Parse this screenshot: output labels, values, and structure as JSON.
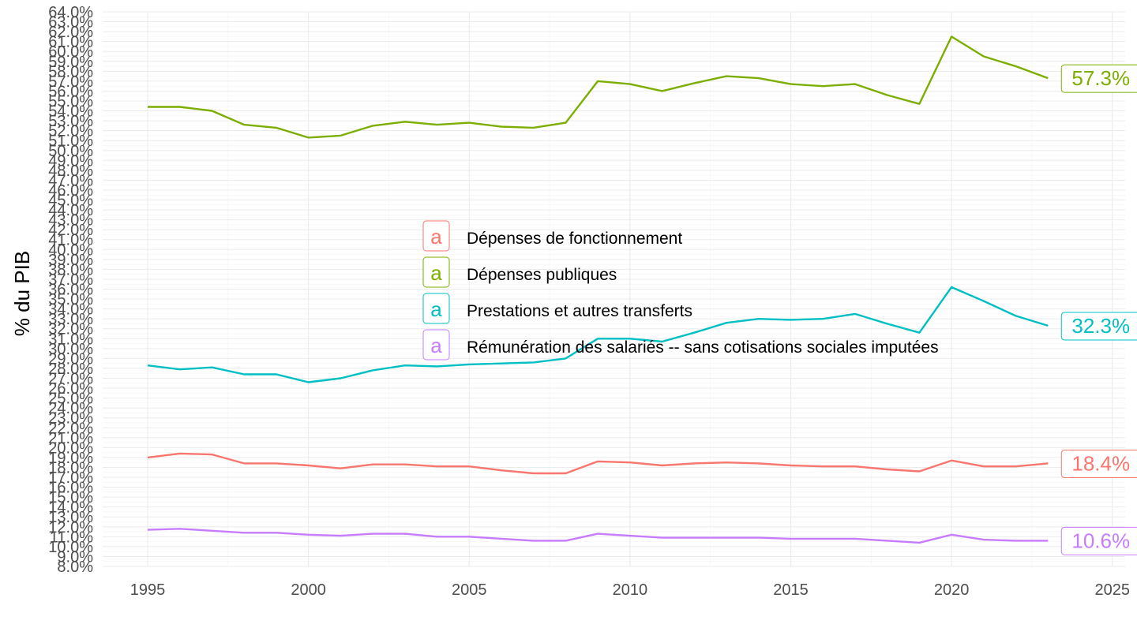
{
  "chart_data": {
    "type": "line",
    "ylabel": "% du PIB",
    "xlabel": "",
    "xlim": [
      1993.6,
      2025.4
    ],
    "ylim": [
      8.0,
      64.0
    ],
    "x_ticks": [
      "1995",
      "2000",
      "2005",
      "2010",
      "2015",
      "2020",
      "2025"
    ],
    "y_ticks": [
      "8.0%",
      "9.0%",
      "10.0%",
      "11.0%",
      "12.0%",
      "13.0%",
      "14.0%",
      "15.0%",
      "16.0%",
      "17.0%",
      "18.0%",
      "19.0%",
      "20.0%",
      "21.0%",
      "22.0%",
      "23.0%",
      "24.0%",
      "25.0%",
      "26.0%",
      "27.0%",
      "28.0%",
      "29.0%",
      "30.0%",
      "31.0%",
      "32.0%",
      "33.0%",
      "34.0%",
      "35.0%",
      "36.0%",
      "37.0%",
      "38.0%",
      "39.0%",
      "40.0%",
      "41.0%",
      "42.0%",
      "43.0%",
      "44.0%",
      "45.0%",
      "46.0%",
      "47.0%",
      "48.0%",
      "49.0%",
      "50.0%",
      "51.0%",
      "52.0%",
      "53.0%",
      "54.0%",
      "55.0%",
      "56.0%",
      "57.0%",
      "58.0%",
      "59.0%",
      "60.0%",
      "61.0%",
      "62.0%",
      "63.0%",
      "64.0%"
    ],
    "grid": true,
    "legend_position": "inside-center",
    "legend_key_glyph": "a",
    "x": [
      1995,
      1996,
      1997,
      1998,
      1999,
      2000,
      2001,
      2002,
      2003,
      2004,
      2005,
      2006,
      2007,
      2008,
      2009,
      2010,
      2011,
      2012,
      2013,
      2014,
      2015,
      2016,
      2017,
      2018,
      2019,
      2020,
      2021,
      2022,
      2023
    ],
    "series": [
      {
        "name": "Dépenses de fonctionnement",
        "color": "#F8766D",
        "end_label": "18.4%",
        "values": [
          19.0,
          19.4,
          19.3,
          18.4,
          18.4,
          18.2,
          17.9,
          18.3,
          18.3,
          18.1,
          18.1,
          17.7,
          17.4,
          17.4,
          18.6,
          18.5,
          18.2,
          18.4,
          18.5,
          18.4,
          18.2,
          18.1,
          18.1,
          17.8,
          17.6,
          18.7,
          18.1,
          18.1,
          18.4
        ]
      },
      {
        "name": "Dépenses publiques",
        "color": "#7CAE00",
        "end_label": "57.3%",
        "values": [
          54.4,
          54.4,
          54.0,
          52.6,
          52.3,
          51.3,
          51.5,
          52.5,
          52.9,
          52.6,
          52.8,
          52.4,
          52.3,
          52.8,
          57.0,
          56.7,
          56.0,
          56.8,
          57.5,
          57.3,
          56.7,
          56.5,
          56.7,
          55.6,
          54.7,
          61.5,
          59.5,
          58.5,
          57.3
        ]
      },
      {
        "name": "Prestations et autres transferts",
        "color": "#00BFC4",
        "end_label": "32.3%",
        "values": [
          28.3,
          27.9,
          28.1,
          27.4,
          27.4,
          26.6,
          27.0,
          27.8,
          28.3,
          28.2,
          28.4,
          28.5,
          28.6,
          29.0,
          31.0,
          31.0,
          30.7,
          31.6,
          32.6,
          33.0,
          32.9,
          33.0,
          33.5,
          32.5,
          31.6,
          36.2,
          34.8,
          33.3,
          32.3
        ]
      },
      {
        "name": "Rémunération des salariés -- sans cotisations sociales imputées",
        "color": "#C77CFF",
        "end_label": "10.6%",
        "values": [
          11.7,
          11.8,
          11.6,
          11.4,
          11.4,
          11.2,
          11.1,
          11.3,
          11.3,
          11.0,
          11.0,
          10.8,
          10.6,
          10.6,
          11.3,
          11.1,
          10.9,
          10.9,
          10.9,
          10.9,
          10.8,
          10.8,
          10.8,
          10.6,
          10.4,
          11.2,
          10.7,
          10.6,
          10.6
        ]
      }
    ]
  }
}
